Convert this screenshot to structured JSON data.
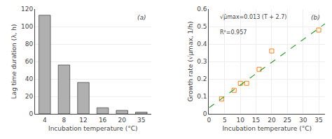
{
  "chart_data": [
    {
      "type": "bar",
      "categories": [
        "4",
        "8",
        "12",
        "16",
        "20",
        "35"
      ],
      "values": [
        113,
        56,
        36,
        7,
        4,
        2
      ],
      "color": "#b0b0b0",
      "xlabel": "Incubation temperature (°C)",
      "ylabel": "Lag time duration (λ, h)",
      "ylim": [
        0,
        120
      ],
      "yticks": [
        0,
        20,
        40,
        60,
        80,
        100,
        120
      ],
      "annotations": [
        "(a)"
      ]
    },
    {
      "type": "scatter",
      "series": [
        {
          "type": "scatter",
          "marker": "square",
          "x": [
            4,
            8,
            10,
            12,
            16,
            20,
            35
          ],
          "values": [
            0.085,
            0.135,
            0.175,
            0.175,
            0.255,
            0.36,
            0.48
          ]
        },
        {
          "type": "line",
          "line_style": "dashed",
          "x": [
            0,
            37
          ],
          "values": [
            0.0351,
            0.5161
          ]
        }
      ],
      "xlabel": "Incubation temperature (°C)",
      "ylabel": "Growth rate (√μmax, 1/h)",
      "xlim": [
        0,
        37
      ],
      "xticks": [
        0,
        5,
        10,
        15,
        20,
        25,
        30,
        35
      ],
      "ylim": [
        0,
        0.6
      ],
      "yticks": [
        0,
        0.1,
        0.2,
        0.3,
        0.4,
        0.5,
        0.6
      ],
      "annotations": [
        "(b)",
        "√μ̄max=0.013 (T + 2.7)",
        "R²=0.957"
      ]
    }
  ]
}
